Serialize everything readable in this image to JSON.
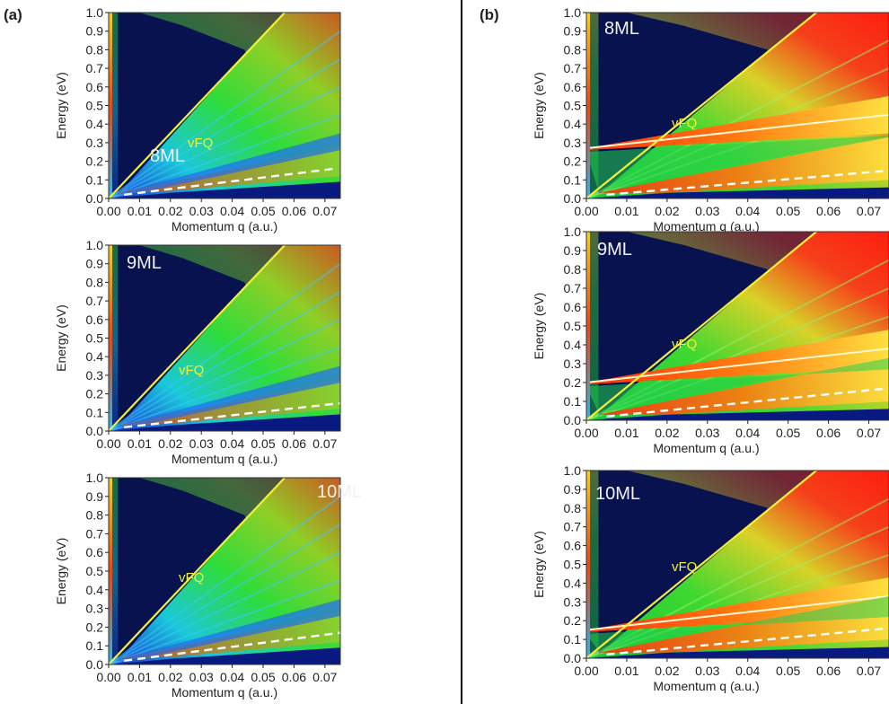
{
  "figure": {
    "panel_labels": [
      "(a)",
      "(b)"
    ]
  },
  "chart_data": [
    {
      "type": "heatmap",
      "panel": "(a)",
      "title": "8ML",
      "xlabel": "Momentum q (a.u.)",
      "ylabel": "Energy (eV)",
      "xlim": [
        0,
        0.075
      ],
      "ylim": [
        0,
        1.0
      ],
      "xticks": [
        "0.00",
        "0.01",
        "0.02",
        "0.03",
        "0.04",
        "0.05",
        "0.06",
        "0.07"
      ],
      "yticks": [
        "0.0",
        "0.1",
        "0.2",
        "0.3",
        "0.4",
        "0.5",
        "0.6",
        "0.7",
        "0.8",
        "0.9",
        "1.0"
      ],
      "line_label": "vFQ",
      "vF_line": {
        "x": [
          0,
          0.057
        ],
        "y": [
          0,
          1.0
        ]
      },
      "dashed_line": {
        "x": [
          0.005,
          0.073
        ],
        "y": [
          0.02,
          0.16
        ]
      },
      "plasmon_flat_energy": null
    },
    {
      "type": "heatmap",
      "panel": "(a)",
      "title": "9ML",
      "xlabel": "Momentum q (a.u.)",
      "ylabel": "Energy (eV)",
      "xlim": [
        0,
        0.075
      ],
      "ylim": [
        0,
        1.0
      ],
      "xticks": [
        "0.00",
        "0.01",
        "0.02",
        "0.03",
        "0.04",
        "0.05",
        "0.06",
        "0.07"
      ],
      "yticks": [
        "0.0",
        "0.1",
        "0.2",
        "0.3",
        "0.4",
        "0.5",
        "0.6",
        "0.7",
        "0.8",
        "0.9",
        "1.0"
      ],
      "line_label": "vFQ",
      "vF_line": {
        "x": [
          0,
          0.057
        ],
        "y": [
          0,
          1.0
        ]
      },
      "dashed_line": {
        "x": [
          0.005,
          0.075
        ],
        "y": [
          0.02,
          0.15
        ]
      },
      "plasmon_flat_energy": null
    },
    {
      "type": "heatmap",
      "panel": "(a)",
      "title": "10ML",
      "xlabel": "Momentum q (a.u.)",
      "ylabel": "Energy (eV)",
      "xlim": [
        0,
        0.075
      ],
      "ylim": [
        0,
        1.0
      ],
      "xticks": [
        "0.00",
        "0.01",
        "0.02",
        "0.03",
        "0.04",
        "0.05",
        "0.06",
        "0.07"
      ],
      "yticks": [
        "0.0",
        "0.1",
        "0.2",
        "0.3",
        "0.4",
        "0.5",
        "0.6",
        "0.7",
        "0.8",
        "0.9",
        "1.0"
      ],
      "line_label": "vFQ",
      "vF_line": {
        "x": [
          0,
          0.057
        ],
        "y": [
          0,
          1.0
        ]
      },
      "dashed_line": {
        "x": [
          0.005,
          0.075
        ],
        "y": [
          0.02,
          0.17
        ]
      },
      "plasmon_flat_energy": null
    },
    {
      "type": "heatmap",
      "panel": "(b)",
      "title": "8ML",
      "xlabel": "Momentum q (a.u.)",
      "ylabel": "Energy (eV)",
      "xlim": [
        0,
        0.075
      ],
      "ylim": [
        0,
        1.0
      ],
      "xticks": [
        "0.00",
        "0.01",
        "0.02",
        "0.03",
        "0.04",
        "0.05",
        "0.06",
        "0.07"
      ],
      "yticks": [
        "0.0",
        "0.1",
        "0.2",
        "0.3",
        "0.4",
        "0.5",
        "0.6",
        "0.7",
        "0.8",
        "0.9",
        "1.0"
      ],
      "line_label": "vFQ",
      "vF_line": {
        "x": [
          0,
          0.057
        ],
        "y": [
          0,
          1.0
        ]
      },
      "dashed_line": {
        "x": [
          0.005,
          0.075
        ],
        "y": [
          0.02,
          0.15
        ]
      },
      "plasmon_flat_energy": 0.27
    },
    {
      "type": "heatmap",
      "panel": "(b)",
      "title": "9ML",
      "xlabel": "Momentum q (a.u.)",
      "ylabel": "Energy (eV)",
      "xlim": [
        0,
        0.075
      ],
      "ylim": [
        0,
        1.0
      ],
      "xticks": [
        "0.00",
        "0.01",
        "0.02",
        "0.03",
        "0.04",
        "0.05",
        "0.06",
        "0.07"
      ],
      "yticks": [
        "0.0",
        "0.1",
        "0.2",
        "0.3",
        "0.4",
        "0.5",
        "0.6",
        "0.7",
        "0.8",
        "0.9",
        "1.0"
      ],
      "line_label": "vFQ",
      "vF_line": {
        "x": [
          0,
          0.057
        ],
        "y": [
          0,
          1.0
        ]
      },
      "dashed_line": {
        "x": [
          0.005,
          0.075
        ],
        "y": [
          0.02,
          0.17
        ]
      },
      "plasmon_flat_energy": 0.2
    },
    {
      "type": "heatmap",
      "panel": "(b)",
      "title": "10ML",
      "xlabel": "Momentum q (a.u.)",
      "ylabel": "Energy (eV)",
      "xlim": [
        0,
        0.075
      ],
      "ylim": [
        0,
        1.0
      ],
      "xticks": [
        "0.00",
        "0.01",
        "0.02",
        "0.03",
        "0.04",
        "0.05",
        "0.06",
        "0.07"
      ],
      "yticks": [
        "0.0",
        "0.1",
        "0.2",
        "0.3",
        "0.4",
        "0.5",
        "0.6",
        "0.7",
        "0.8",
        "0.9",
        "1.0"
      ],
      "line_label": "vFQ",
      "vF_line": {
        "x": [
          0,
          0.057
        ],
        "y": [
          0,
          1.0
        ]
      },
      "dashed_line": {
        "x": [
          0.005,
          0.075
        ],
        "y": [
          0.02,
          0.16
        ]
      },
      "plasmon_flat_energy": 0.15
    }
  ]
}
